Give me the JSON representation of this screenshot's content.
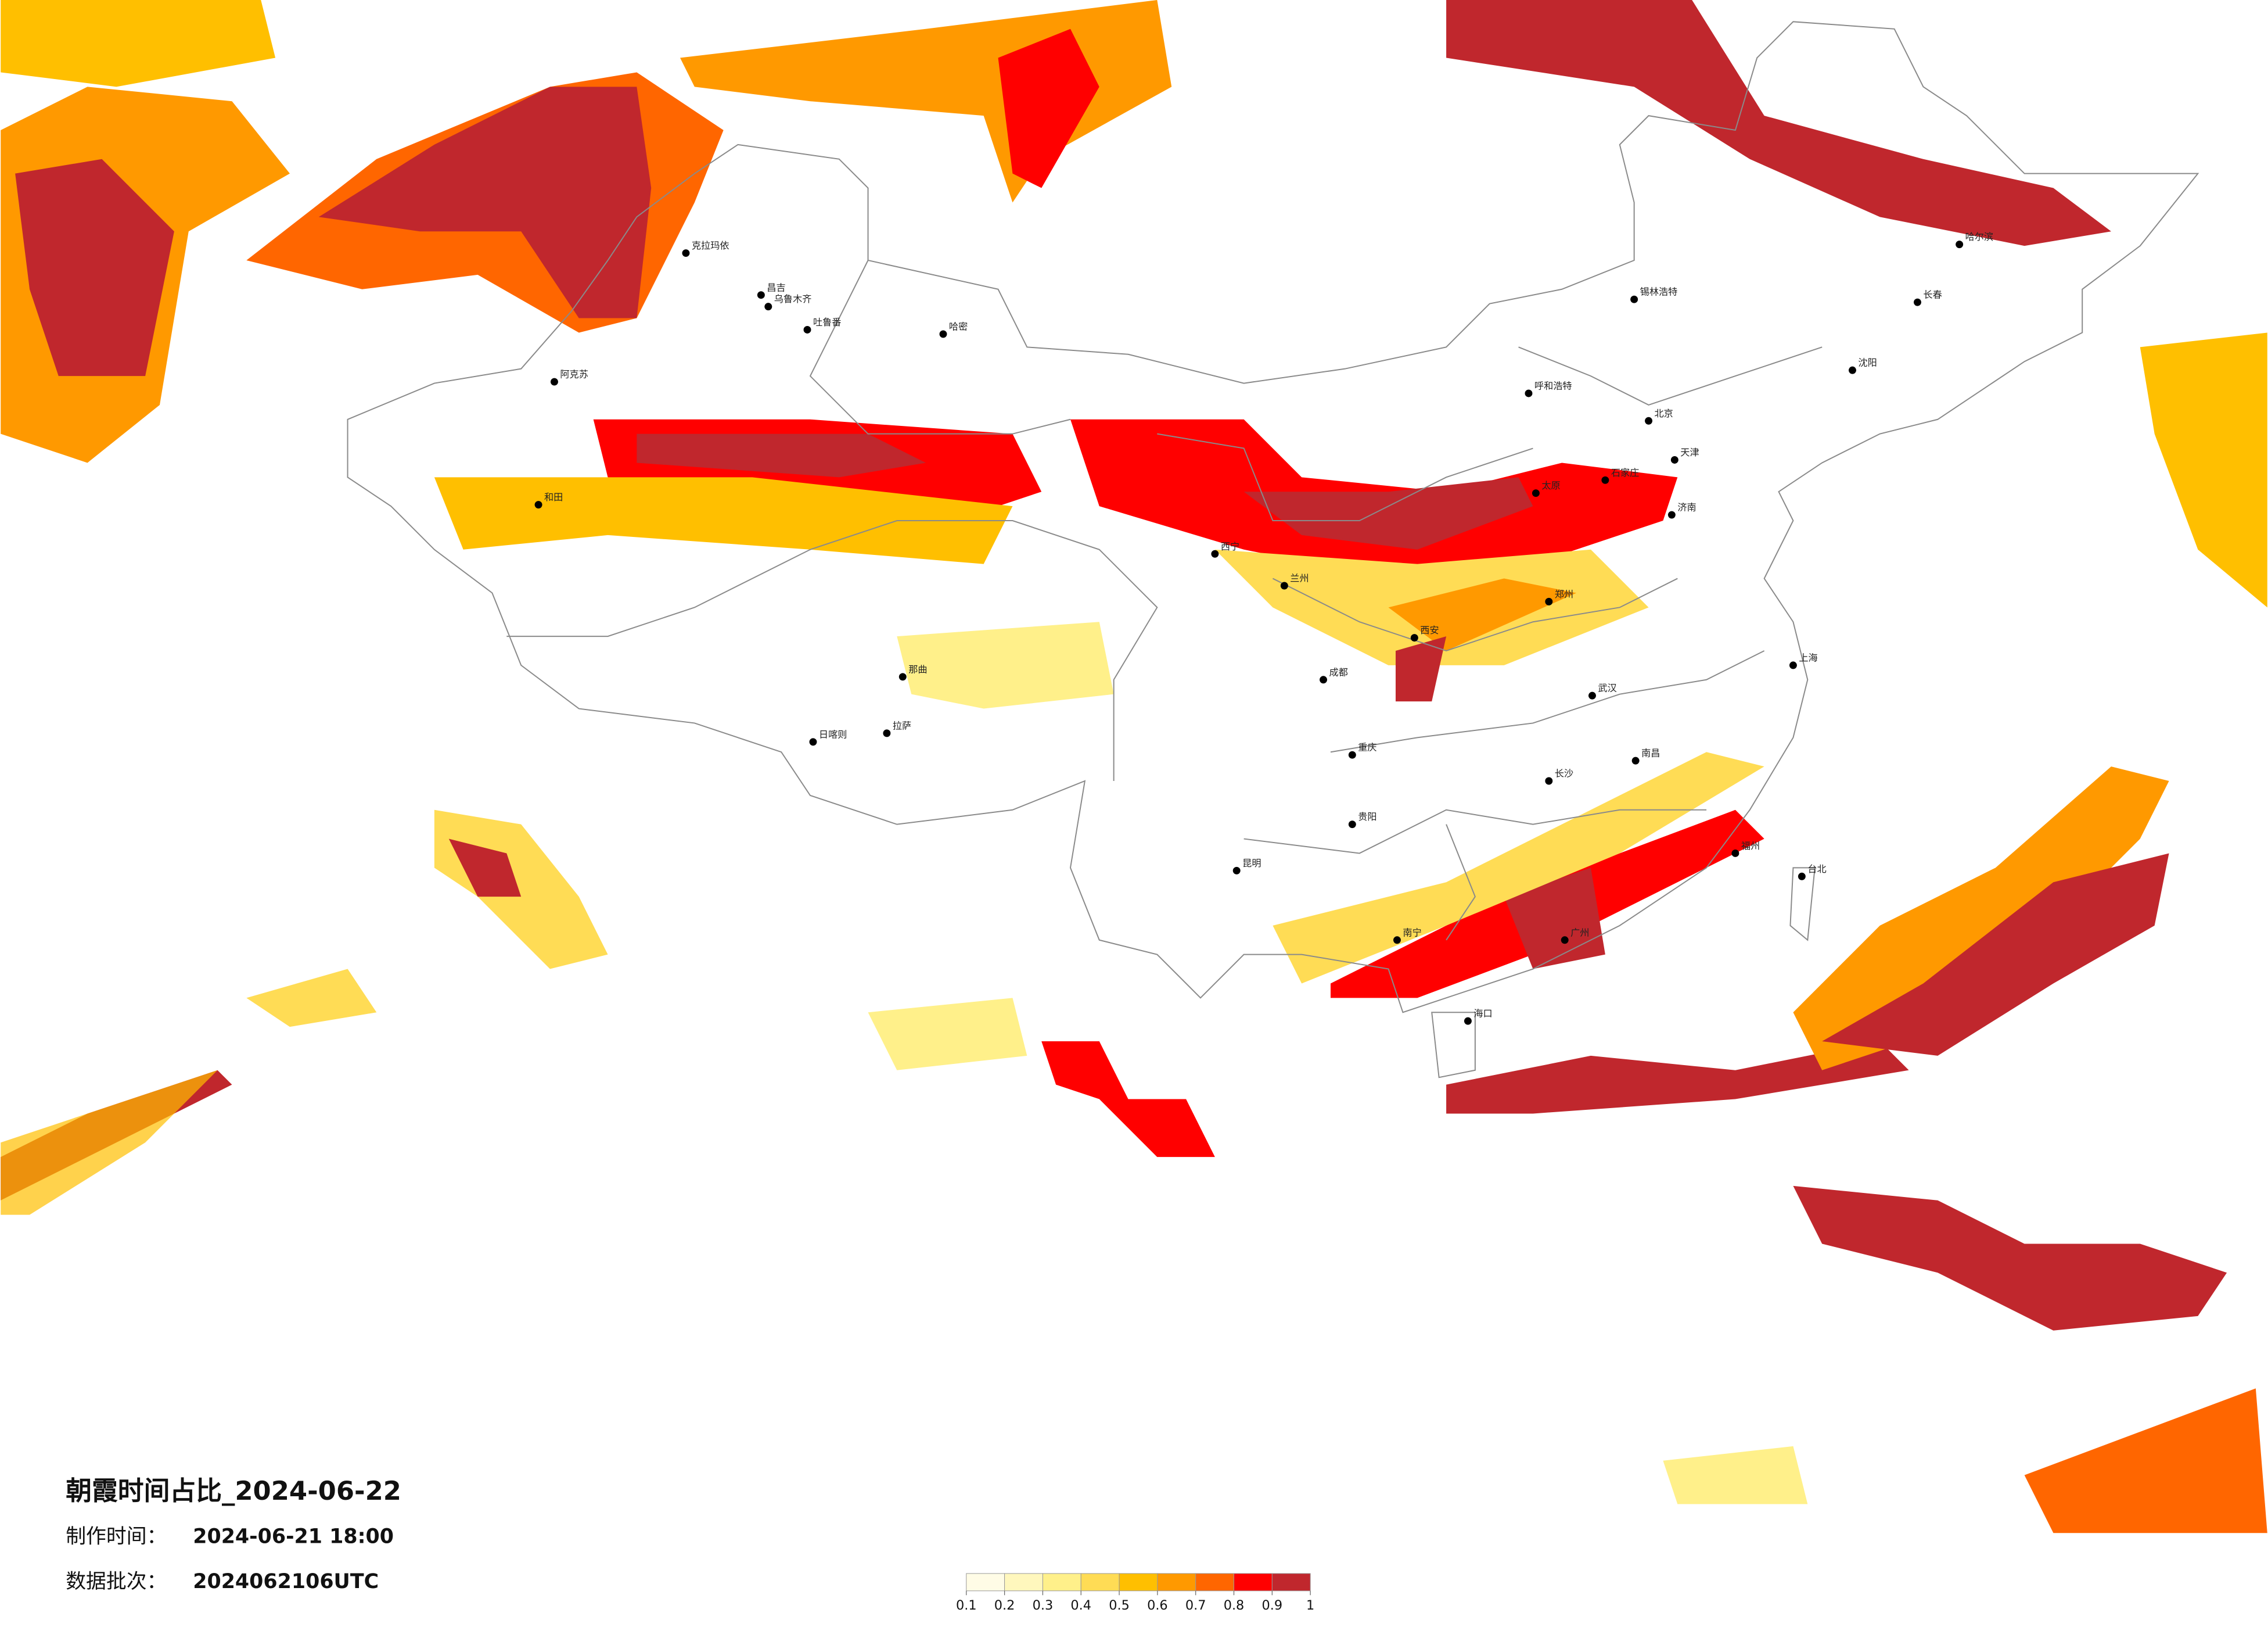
{
  "header": {
    "title": "朝霞时间占比_2024-06-22",
    "made_label": "制作时间：",
    "made_value": "2024-06-21 18:00",
    "batch_label": "数据批次：",
    "batch_value": "2024062106UTC"
  },
  "colorbar": {
    "ticks": [
      0.1,
      0.2,
      0.3,
      0.4,
      0.5,
      0.6,
      0.7,
      0.8,
      0.9,
      1
    ],
    "colors": [
      "#fffce6",
      "#fff7bd",
      "#fff08a",
      "#ffdc55",
      "#ffbf00",
      "#ff9900",
      "#ff6600",
      "#ff0000",
      "#c0272d"
    ]
  },
  "cities": [
    "克拉玛依",
    "昌吉",
    "乌鲁木齐",
    "吐鲁番",
    "哈密",
    "阿克苏",
    "和田",
    "日喀则",
    "拉萨",
    "那曲",
    "西宁",
    "兰州",
    "呼和浩特",
    "锡林浩特",
    "北京",
    "天津",
    "石家庄",
    "太原",
    "济南",
    "郑州",
    "西安",
    "成都",
    "重庆",
    "贵阳",
    "昆明",
    "南宁",
    "广州",
    "长沙",
    "武汉",
    "南昌",
    "上海",
    "福州",
    "台北",
    "海口",
    "沈阳",
    "长春",
    "哈尔滨"
  ]
}
